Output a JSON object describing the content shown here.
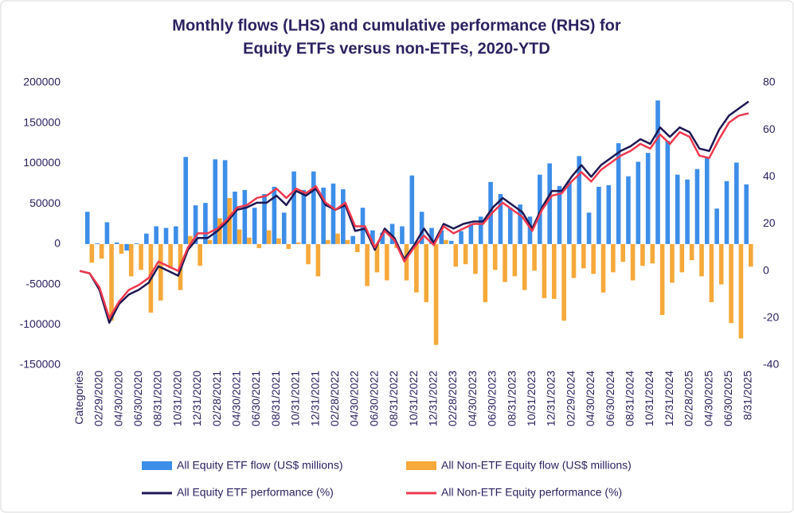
{
  "chart_data": {
    "type": "combo",
    "title": [
      "Monthly flows (LHS) and cumulative performance (RHS) for",
      "Equity ETFs versus non-ETFs, 2020-YTD"
    ],
    "categories": [
      "Categories",
      null,
      "02/29/2020",
      null,
      "04/30/2020",
      null,
      "06/30/2020",
      null,
      "08/31/2020",
      null,
      "10/31/2020",
      null,
      "12/31/2020",
      null,
      "02/28/2021",
      null,
      "04/30/2021",
      null,
      "06/30/2021",
      null,
      "08/31/2021",
      null,
      "10/31/2021",
      null,
      "12/31/2021",
      null,
      "02/28/2022",
      null,
      "04/30/2022",
      null,
      "06/30/2022",
      null,
      "08/31/2022",
      null,
      "10/31/2022",
      null,
      "12/31/2022",
      null,
      "02/28/2023",
      null,
      "04/30/2023",
      null,
      "06/30/2023",
      null,
      "08/31/2023",
      null,
      "10/31/2023",
      null,
      "12/31/2023",
      null,
      "02/29/2024",
      null,
      "04/30/2024",
      null,
      "06/30/2024",
      null,
      "08/31/2024",
      null,
      "10/31/2024",
      null,
      "12/31/2024",
      null,
      "02/28/2025",
      null,
      "04/30/2025",
      null,
      "06/30/2025",
      null,
      "8/31/2025"
    ],
    "series": [
      {
        "name": "All Equity ETF flow (US$ millions)",
        "type": "bar",
        "color": "#3d8ee8",
        "values": [
          null,
          40000,
          1000,
          27000,
          2000,
          -8000,
          1000,
          13000,
          22000,
          20000,
          22000,
          108000,
          48000,
          51000,
          105000,
          104000,
          65000,
          67000,
          45000,
          62000,
          71000,
          39000,
          90000,
          67000,
          90000,
          70000,
          75000,
          68000,
          10000,
          45000,
          17000,
          14000,
          25000,
          22000,
          85000,
          40000,
          20000,
          17000,
          4000,
          16000,
          25000,
          34000,
          77000,
          62000,
          45000,
          49000,
          34000,
          86000,
          100000,
          72000,
          78000,
          109000,
          39000,
          71000,
          73000,
          125000,
          84000,
          102000,
          113000,
          178000,
          128000,
          86000,
          80000,
          93000,
          108000,
          44000,
          78000,
          101000,
          74000
        ]
      },
      {
        "name": "All Non-ETF Equity flow (US$ millions)",
        "type": "bar",
        "color": "#f5a93a",
        "values": [
          null,
          -23000,
          -18000,
          -95000,
          -12000,
          -40000,
          -32000,
          -85000,
          -70000,
          -30000,
          -57000,
          10000,
          -27000,
          5000,
          32000,
          57000,
          18000,
          8000,
          -5000,
          17000,
          7000,
          -6000,
          2000,
          -25000,
          -40000,
          5000,
          13000,
          5000,
          -10000,
          -52000,
          -35000,
          -45000,
          -5000,
          -45000,
          -60000,
          -72000,
          -125000,
          5000,
          -28000,
          -25000,
          -37000,
          -72000,
          -32000,
          -47000,
          -40000,
          -57000,
          -33000,
          -67000,
          -68000,
          -95000,
          -42000,
          -30000,
          -37000,
          -60000,
          -35000,
          -22000,
          -45000,
          -27000,
          -24000,
          -88000,
          -48000,
          -35000,
          -20000,
          -40000,
          -72000,
          -50000,
          -98000,
          -117000,
          -28000
        ]
      },
      {
        "name": "All Equity ETF performance (%)",
        "type": "line",
        "axis": "y2",
        "color": "#1d1852",
        "values": [
          0,
          -1,
          -8,
          -22,
          -14,
          -10,
          -8,
          -5,
          2,
          0,
          -2,
          9,
          14,
          14,
          17,
          21,
          26,
          27,
          29,
          29,
          32,
          28,
          34,
          32,
          35,
          28,
          26,
          28,
          17,
          18,
          9,
          18,
          14,
          5,
          11,
          18,
          12,
          20,
          18,
          20,
          21,
          21,
          27,
          31,
          28,
          25,
          18,
          27,
          34,
          34,
          40,
          45,
          40,
          45,
          48,
          51,
          53,
          56,
          54,
          61,
          57,
          61,
          59,
          52,
          51,
          60,
          66,
          69,
          72
        ]
      },
      {
        "name": "All Non-ETF Equity performance (%)",
        "type": "line",
        "axis": "y2",
        "color": "#f0384f",
        "values": [
          0,
          -1,
          -7,
          -20,
          -13,
          -8,
          -6,
          -3,
          4,
          2,
          0,
          10,
          16,
          16,
          18,
          22,
          27,
          28,
          31,
          32,
          35,
          31,
          35,
          33,
          36,
          29,
          26,
          29,
          19,
          19,
          10,
          17,
          13,
          4,
          10,
          15,
          11,
          19,
          16,
          18,
          20,
          20,
          25,
          29,
          26,
          23,
          17,
          26,
          32,
          33,
          38,
          42,
          38,
          43,
          46,
          49,
          51,
          54,
          52,
          58,
          54,
          59,
          57,
          49,
          48,
          56,
          63,
          66,
          67
        ]
      }
    ],
    "ylim": [
      -150000,
      200000
    ],
    "yticks": [
      -150000,
      -100000,
      -50000,
      0,
      50000,
      100000,
      150000,
      200000
    ],
    "y2lim": [
      -40,
      80
    ],
    "y2ticks": [
      -40,
      -20,
      0,
      20,
      40,
      60,
      80
    ]
  }
}
